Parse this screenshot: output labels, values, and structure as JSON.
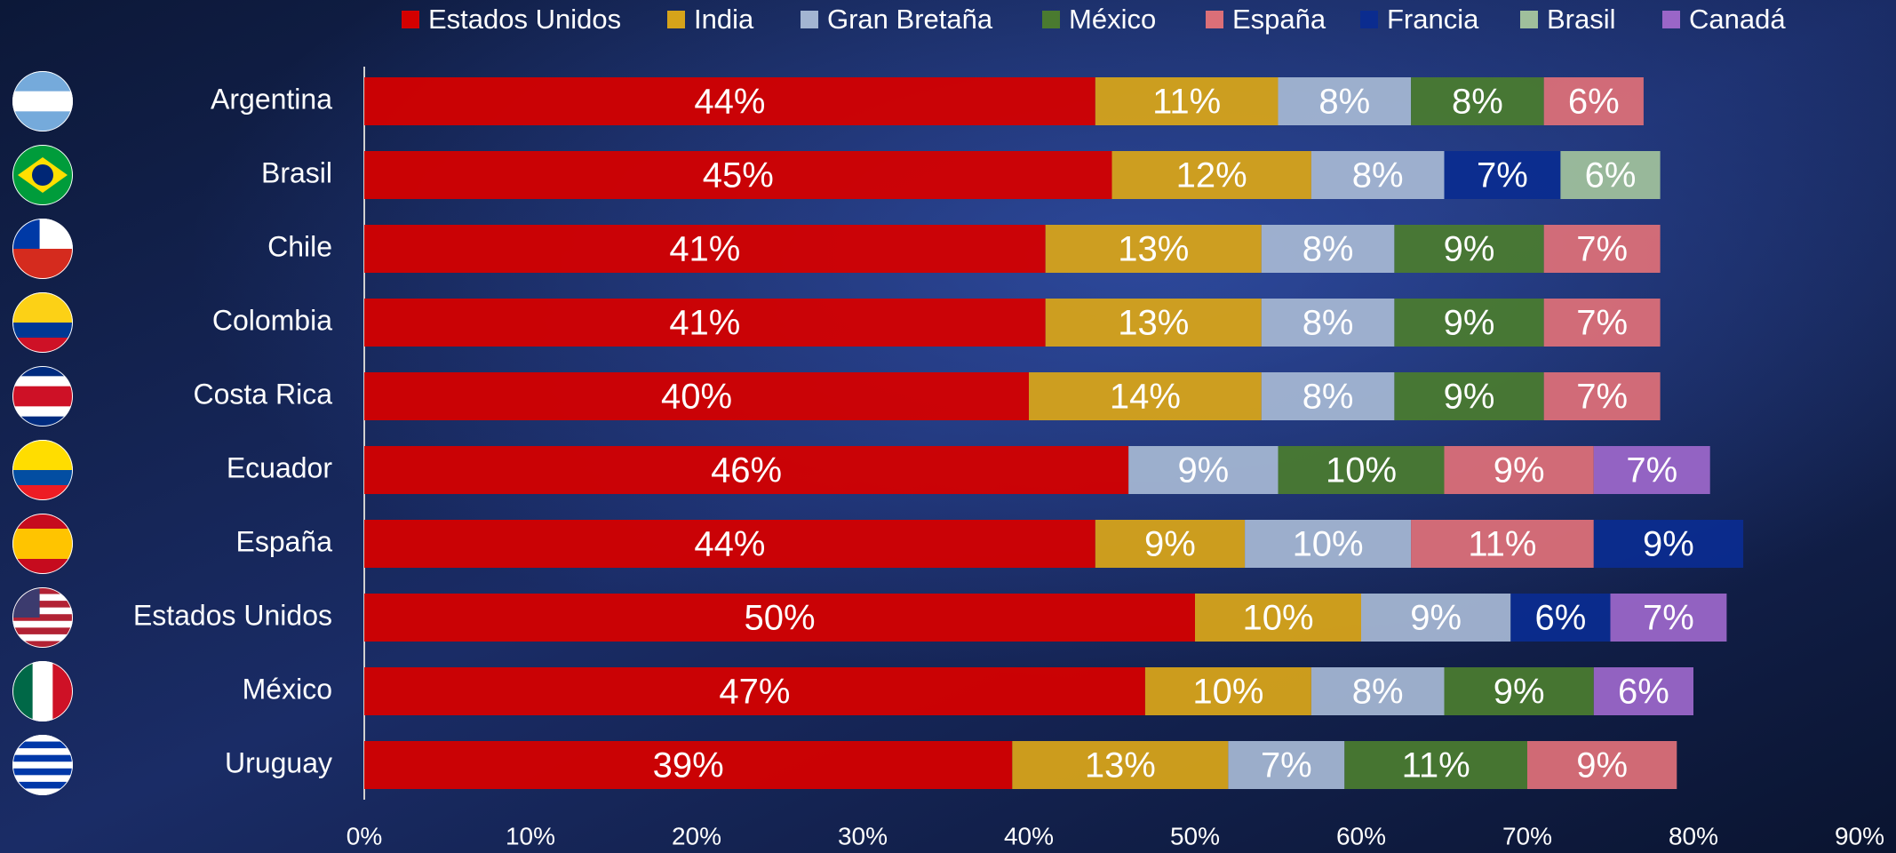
{
  "chart_data": {
    "type": "stacked-bar-horizontal",
    "categories": [
      "Argentina",
      "Brasil",
      "Chile",
      "Colombia",
      "Costa Rica",
      "Ecuador",
      "España",
      "Estados Unidos",
      "México",
      "Uruguay"
    ],
    "series": [
      {
        "name": "Estados Unidos",
        "color": "#d40000",
        "values": [
          44,
          45,
          41,
          41,
          40,
          46,
          44,
          50,
          47,
          39
        ],
        "value_labels": [
          "44%",
          "45%",
          "41%",
          "41%",
          "40%",
          "46%",
          "44%",
          "50%",
          "47%",
          "39%"
        ]
      },
      {
        "name": "India",
        "color": "#d6a31a",
        "values": [
          11,
          12,
          13,
          13,
          14,
          null,
          9,
          10,
          10,
          13
        ],
        "value_labels": [
          "11%",
          "12%",
          "13%",
          "13%",
          "14%",
          null,
          "9%",
          "10%",
          "10%",
          "13%"
        ]
      },
      {
        "name": "Gran Bretaña",
        "color": "#a3b5d2",
        "values": [
          8,
          8,
          8,
          8,
          8,
          9,
          10,
          9,
          8,
          7
        ],
        "value_labels": [
          "8%",
          "8%",
          "8%",
          "8%",
          "8%",
          "9%",
          "10%",
          "9%",
          "8%",
          "7%"
        ]
      },
      {
        "name": "México",
        "color": "#4a7a30",
        "values": [
          8,
          null,
          9,
          9,
          9,
          10,
          null,
          null,
          9,
          11
        ],
        "value_labels": [
          "8%",
          null,
          "9%",
          "9%",
          "9%",
          "10%",
          null,
          null,
          "9%",
          "11%"
        ]
      },
      {
        "name": "España",
        "color": "#db6f78",
        "values": [
          6,
          null,
          7,
          7,
          7,
          9,
          11,
          null,
          null,
          9
        ],
        "value_labels": [
          "6%",
          null,
          "7%",
          "7%",
          "7%",
          "9%",
          "11%",
          null,
          null,
          "9%"
        ]
      },
      {
        "name": "Francia",
        "color": "#0b2c8f",
        "values": [
          null,
          7,
          null,
          null,
          null,
          null,
          9,
          6,
          null,
          null
        ],
        "value_labels": [
          null,
          "7%",
          null,
          null,
          null,
          null,
          "9%",
          "6%",
          null,
          null
        ]
      },
      {
        "name": "Brasil",
        "color": "#9fbf9c",
        "values": [
          null,
          6,
          null,
          null,
          null,
          null,
          null,
          null,
          null,
          null
        ],
        "value_labels": [
          null,
          "6%",
          null,
          null,
          null,
          null,
          null,
          null,
          null,
          null
        ]
      },
      {
        "name": "Canadá",
        "color": "#9a66c8",
        "values": [
          null,
          null,
          null,
          null,
          null,
          7,
          null,
          7,
          6,
          null
        ],
        "value_labels": [
          null,
          null,
          null,
          null,
          null,
          "7%",
          null,
          "7%",
          "6%",
          null
        ]
      }
    ],
    "xlim": [
      0,
      90
    ],
    "xticks": [
      {
        "value": 0,
        "label": "0%"
      },
      {
        "value": 10,
        "label": "10%"
      },
      {
        "value": 20,
        "label": "20%"
      },
      {
        "value": 30,
        "label": "30%"
      },
      {
        "value": 40,
        "label": "40%"
      },
      {
        "value": 50,
        "label": "50%"
      },
      {
        "value": 60,
        "label": "60%"
      },
      {
        "value": 70,
        "label": "70%"
      },
      {
        "value": 80,
        "label": "80%"
      },
      {
        "value": 90,
        "label": "90%"
      }
    ],
    "legend": "top"
  }
}
